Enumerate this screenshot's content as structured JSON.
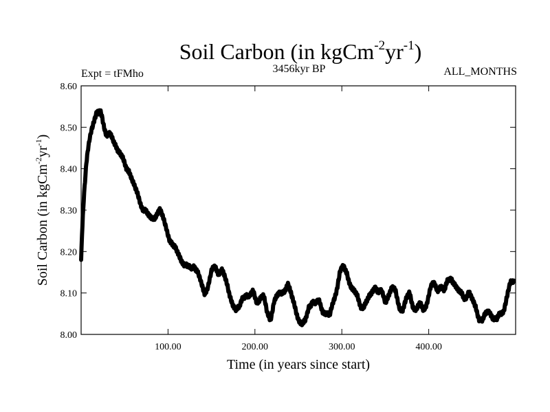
{
  "header": {
    "title_main": "Soil Carbon (in kgCm",
    "title_exp1": "-2",
    "title_mid": "yr",
    "title_exp2": "-1",
    "title_end": ")",
    "expt": "Expt = tFMho",
    "period": "3456kyr BP",
    "months": "ALL_MONTHS"
  },
  "chart_data": {
    "type": "line",
    "xlabel": "Time (in years since start)",
    "ylabel": {
      "main": "Soil Carbon (in kgCm",
      "exp1": "-2",
      "mid": "yr",
      "exp2": "-1",
      "end": ")"
    },
    "xlim": [
      0,
      500
    ],
    "ylim": [
      8.0,
      8.6
    ],
    "xticks": [
      100,
      200,
      300,
      400
    ],
    "xtick_labels": [
      "100.00",
      "200.00",
      "300.00",
      "400.00"
    ],
    "yticks": [
      8.0,
      8.1,
      8.2,
      8.3,
      8.4,
      8.5,
      8.6
    ],
    "ytick_labels": [
      "8.00",
      "8.10",
      "8.20",
      "8.30",
      "8.40",
      "8.50",
      "8.60"
    ],
    "line_color": "#000000",
    "series": [
      {
        "x": [
          0,
          1,
          2,
          3,
          4,
          5,
          6,
          7,
          8,
          10,
          12,
          14,
          16,
          18,
          20,
          22,
          24,
          26,
          28,
          30,
          33,
          36,
          40,
          44,
          48,
          52,
          55,
          58,
          62,
          66,
          70,
          74,
          78,
          82,
          86,
          90,
          94,
          98,
          102,
          106,
          110,
          114,
          118,
          122,
          126,
          130,
          134,
          138,
          142,
          146,
          150,
          154,
          158,
          162,
          166,
          170,
          174,
          178,
          182,
          186,
          190,
          194,
          198,
          202,
          206,
          210,
          214,
          218,
          222,
          226,
          230,
          234,
          238,
          242,
          246,
          250,
          254,
          258,
          262,
          266,
          270,
          274,
          278,
          282,
          286,
          290,
          294,
          298,
          302,
          306,
          310,
          314,
          318,
          322,
          326,
          330,
          334,
          338,
          342,
          346,
          350,
          354,
          358,
          362,
          366,
          370,
          374,
          378,
          382,
          386,
          390,
          394,
          398,
          402,
          406,
          410,
          414,
          418,
          422,
          426,
          430,
          434,
          438,
          442,
          446,
          450,
          454,
          458,
          462,
          466,
          470,
          474,
          478,
          482,
          486,
          490,
          494,
          498
        ],
        "y": [
          8.18,
          8.24,
          8.28,
          8.32,
          8.35,
          8.38,
          8.41,
          8.43,
          8.45,
          8.48,
          8.5,
          8.51,
          8.52,
          8.53,
          8.53,
          8.54,
          8.53,
          8.51,
          8.49,
          8.48,
          8.48,
          8.47,
          8.46,
          8.44,
          8.42,
          8.4,
          8.4,
          8.38,
          8.35,
          8.33,
          8.31,
          8.3,
          8.28,
          8.28,
          8.29,
          8.3,
          8.28,
          8.26,
          8.23,
          8.21,
          8.2,
          8.19,
          8.17,
          8.16,
          8.16,
          8.17,
          8.15,
          8.12,
          8.1,
          8.12,
          8.15,
          8.16,
          8.15,
          8.16,
          8.13,
          8.1,
          8.08,
          8.06,
          8.06,
          8.09,
          8.1,
          8.09,
          8.1,
          8.08,
          8.09,
          8.09,
          8.05,
          8.04,
          8.08,
          8.09,
          8.1,
          8.11,
          8.12,
          8.09,
          8.07,
          8.04,
          8.02,
          8.03,
          8.07,
          8.08,
          8.07,
          8.08,
          8.06,
          8.05,
          8.04,
          8.08,
          8.11,
          8.15,
          8.16,
          8.15,
          8.12,
          8.1,
          8.09,
          8.07,
          8.07,
          8.08,
          8.1,
          8.12,
          8.1,
          8.1,
          8.08,
          8.1,
          8.11,
          8.1,
          8.07,
          8.06,
          8.08,
          8.1,
          8.07,
          8.06,
          8.07,
          8.06,
          8.08,
          8.11,
          8.12,
          8.11,
          8.12,
          8.1,
          8.13,
          8.14,
          8.12,
          8.1,
          8.1,
          8.09,
          8.1,
          8.08,
          8.07,
          8.04,
          8.03,
          8.05,
          8.06,
          8.04,
          8.03,
          8.05,
          8.06,
          8.09,
          8.12,
          8.13
        ]
      }
    ]
  }
}
